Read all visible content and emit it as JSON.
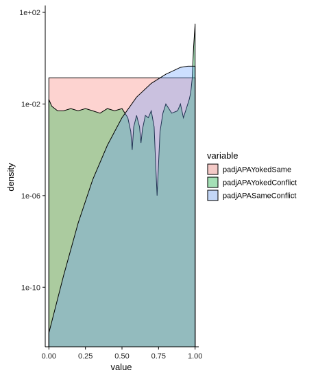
{
  "chart_data": {
    "type": "area",
    "xlabel": "value",
    "ylabel": "density",
    "xlim": [
      -0.025,
      1.025
    ],
    "ylim_log10": [
      -12.6,
      2.3
    ],
    "y_scale": "log10",
    "x_ticks": [
      {
        "value": 0.0,
        "label": "0.00"
      },
      {
        "value": 0.25,
        "label": "0.25"
      },
      {
        "value": 0.5,
        "label": "0.50"
      },
      {
        "value": 0.75,
        "label": "0.75"
      },
      {
        "value": 1.0,
        "label": "1.00"
      }
    ],
    "y_ticks": [
      {
        "log10": 2,
        "label": "1e+02"
      },
      {
        "log10": -2,
        "label": "1e-02"
      },
      {
        "log10": -6,
        "label": "1e-06"
      },
      {
        "log10": -10,
        "label": "1e-10"
      }
    ],
    "grid": false,
    "legend": {
      "title": "variable",
      "position": "right",
      "entries": [
        {
          "label": "padjAPAYokedSame",
          "color": "#F8766D"
        },
        {
          "label": "padjAPAYokedConflict",
          "color": "#00BA38"
        },
        {
          "label": "padjAPASameConflict",
          "color": "#619CFF"
        }
      ]
    },
    "series": [
      {
        "name": "padjAPAYokedSame",
        "color": "#F8766D",
        "x": [
          0.0,
          0.0,
          1.0,
          1.0
        ],
        "log10_y": [
          -12.6,
          -0.86,
          -0.86,
          -12.6
        ]
      },
      {
        "name": "padjAPAYokedConflict",
        "color": "#00BA38",
        "x": [
          0.0,
          0.02,
          0.06,
          0.1,
          0.15,
          0.2,
          0.25,
          0.3,
          0.35,
          0.4,
          0.45,
          0.5,
          0.52,
          0.54,
          0.56,
          0.57,
          0.58,
          0.6,
          0.62,
          0.63,
          0.64,
          0.66,
          0.68,
          0.7,
          0.72,
          0.73,
          0.74,
          0.76,
          0.78,
          0.8,
          0.84,
          0.88,
          0.9,
          0.92,
          0.94,
          0.96,
          0.97,
          0.98,
          0.99,
          1.0
        ],
        "log10_y": [
          -1.8,
          -2.1,
          -2.3,
          -2.3,
          -2.2,
          -2.3,
          -2.2,
          -2.3,
          -2.4,
          -2.2,
          -2.3,
          -2.2,
          -2.4,
          -2.6,
          -3.2,
          -4.0,
          -3.0,
          -2.5,
          -3.0,
          -3.7,
          -3.1,
          -2.5,
          -2.6,
          -2.3,
          -3.0,
          -4.6,
          -6.0,
          -3.2,
          -2.4,
          -2.0,
          -2.4,
          -2.3,
          -2.0,
          -2.6,
          -2.2,
          -1.8,
          -1.5,
          -0.9,
          0.5,
          1.5
        ]
      },
      {
        "name": "padjAPASameConflict",
        "color": "#619CFF",
        "x": [
          0.0,
          0.1,
          0.2,
          0.3,
          0.4,
          0.5,
          0.6,
          0.7,
          0.8,
          0.9,
          0.95,
          1.0
        ],
        "log10_y": [
          -12.0,
          -9.5,
          -7.2,
          -5.3,
          -3.8,
          -2.6,
          -1.7,
          -1.1,
          -0.7,
          -0.4,
          -0.35,
          -0.35
        ]
      }
    ]
  }
}
